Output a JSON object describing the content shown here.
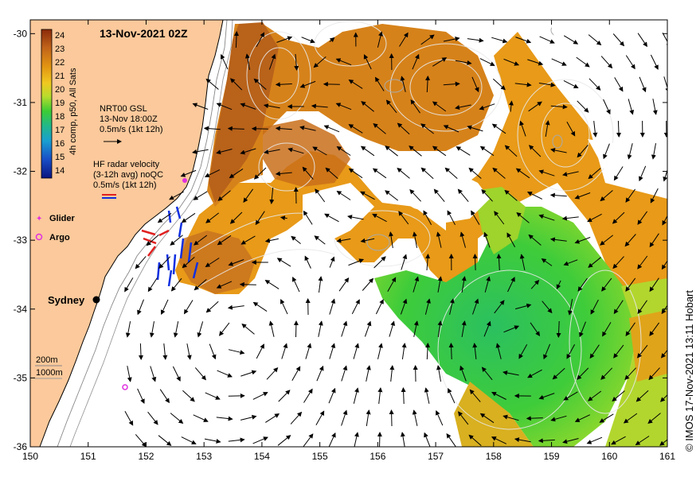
{
  "map": {
    "title": "13-Nov-2021 02Z",
    "lon_ticks": [
      "150",
      "151",
      "152",
      "153",
      "154",
      "155",
      "156",
      "157",
      "158",
      "159",
      "160",
      "161"
    ],
    "lat_ticks": [
      "-30",
      "-31",
      "-32",
      "-33",
      "-34",
      "-35",
      "-36"
    ],
    "lon_range": [
      150,
      161
    ],
    "lat_range": [
      -36,
      -29.8
    ],
    "colorbar": {
      "ticks": [
        "24",
        "23",
        "22",
        "21",
        "20",
        "19",
        "18",
        "17",
        "16",
        "15",
        "14"
      ],
      "caption": "4h comp, p50, All Sats",
      "colors": [
        "#8a2a0a",
        "#b5561a",
        "#d07a1c",
        "#e29512",
        "#efb312",
        "#eed52b",
        "#c8de2c",
        "#7ad52a",
        "#29c23b",
        "#22b88a",
        "#1aa5c2",
        "#1a7fd4",
        "#1a4fc0",
        "#0a1f9a"
      ]
    },
    "gsl_legend": {
      "line1": "NRT00 GSL",
      "line2": "13-Nov 18:00Z",
      "line3": "0.5m/s (1kt 12h)"
    },
    "radar_legend": {
      "line1": "HF radar velocity",
      "line2": "(3-12h avg) noQC",
      "line3": "0.5m/s (1kt 12h)"
    },
    "glider_label": "Glider",
    "argo_label": "Argo",
    "city_label": "Sydney",
    "bathy_legend": {
      "line1": "200m",
      "line2": "1000m"
    },
    "credit": "© IMOS 17-Nov-2021 13:11 Hobart",
    "colors": {
      "land": "#fbc99b",
      "ocean_nodata": "#ffffff",
      "warm_core": "#b8621a",
      "warm": "#e89a18",
      "cool": "#2fc44a",
      "glider": "#e030e0",
      "radar_red": "#e02020",
      "radar_blue": "#1030e0"
    }
  }
}
